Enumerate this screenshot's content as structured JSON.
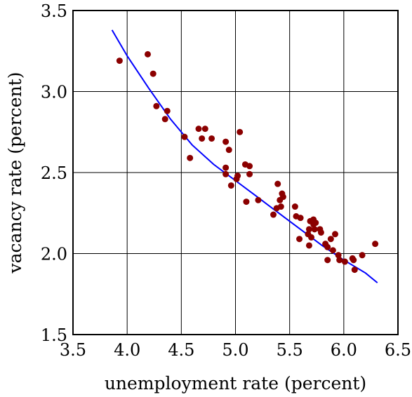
{
  "chart_data": {
    "type": "scatter",
    "xlabel": "unemployment rate (percent)",
    "ylabel": "vacancy rate (percent)",
    "xlim": [
      3.5,
      6.5
    ],
    "ylim": [
      1.5,
      3.5
    ],
    "xticks": [
      "3.5",
      "4.0",
      "4.5",
      "5.0",
      "5.5",
      "6.0",
      "6.5"
    ],
    "yticks": [
      "1.5",
      "2.0",
      "2.5",
      "3.0",
      "3.5"
    ],
    "grid": true,
    "point_color": "#8b0000",
    "curve_color": "#0000ff",
    "points": [
      [
        3.93,
        3.19
      ],
      [
        4.19,
        3.23
      ],
      [
        4.24,
        3.11
      ],
      [
        4.27,
        2.91
      ],
      [
        4.35,
        2.83
      ],
      [
        4.37,
        2.88
      ],
      [
        4.53,
        2.72
      ],
      [
        4.58,
        2.59
      ],
      [
        4.66,
        2.77
      ],
      [
        4.69,
        2.71
      ],
      [
        4.72,
        2.77
      ],
      [
        4.78,
        2.71
      ],
      [
        4.91,
        2.69
      ],
      [
        4.91,
        2.53
      ],
      [
        4.91,
        2.49
      ],
      [
        4.94,
        2.64
      ],
      [
        4.96,
        2.42
      ],
      [
        5.01,
        2.46
      ],
      [
        5.02,
        2.48
      ],
      [
        5.04,
        2.75
      ],
      [
        5.09,
        2.55
      ],
      [
        5.1,
        2.32
      ],
      [
        5.13,
        2.49
      ],
      [
        5.13,
        2.54
      ],
      [
        5.21,
        2.33
      ],
      [
        5.35,
        2.24
      ],
      [
        5.38,
        2.28
      ],
      [
        5.39,
        2.43
      ],
      [
        5.41,
        2.33
      ],
      [
        5.42,
        2.29
      ],
      [
        5.43,
        2.37
      ],
      [
        5.44,
        2.35
      ],
      [
        5.55,
        2.29
      ],
      [
        5.56,
        2.23
      ],
      [
        5.59,
        2.09
      ],
      [
        5.6,
        2.22
      ],
      [
        5.67,
        2.12
      ],
      [
        5.68,
        2.15
      ],
      [
        5.68,
        2.05
      ],
      [
        5.69,
        2.2
      ],
      [
        5.7,
        2.1
      ],
      [
        5.72,
        2.18
      ],
      [
        5.72,
        2.21
      ],
      [
        5.73,
        2.15
      ],
      [
        5.74,
        2.19
      ],
      [
        5.78,
        2.15
      ],
      [
        5.79,
        2.13
      ],
      [
        5.83,
        2.06
      ],
      [
        5.85,
        2.04
      ],
      [
        5.85,
        1.96
      ],
      [
        5.88,
        2.09
      ],
      [
        5.9,
        2.02
      ],
      [
        5.92,
        2.12
      ],
      [
        5.95,
        1.99
      ],
      [
        5.96,
        1.96
      ],
      [
        6.01,
        1.95
      ],
      [
        6.08,
        1.97
      ],
      [
        6.09,
        1.96
      ],
      [
        6.1,
        1.9
      ],
      [
        6.17,
        1.99
      ],
      [
        6.29,
        2.06
      ]
    ],
    "fit_curve": [
      [
        3.86,
        3.38
      ],
      [
        4.0,
        3.22
      ],
      [
        4.2,
        3.02
      ],
      [
        4.4,
        2.83
      ],
      [
        4.6,
        2.67
      ],
      [
        4.8,
        2.55
      ],
      [
        5.0,
        2.45
      ],
      [
        5.2,
        2.35
      ],
      [
        5.4,
        2.25
      ],
      [
        5.6,
        2.15
      ],
      [
        5.8,
        2.05
      ],
      [
        6.0,
        1.96
      ],
      [
        6.2,
        1.88
      ],
      [
        6.31,
        1.82
      ]
    ]
  }
}
